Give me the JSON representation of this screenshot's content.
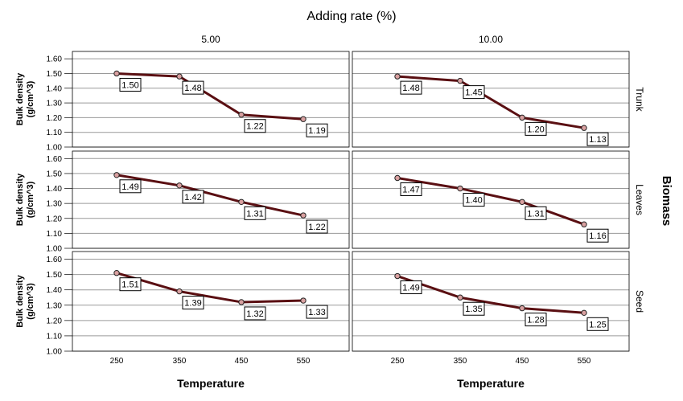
{
  "chart_data": {
    "type": "line",
    "title": "Adding rate (%)",
    "row_facet_label": "Biomass",
    "column_facets": [
      "5.00",
      "10.00"
    ],
    "row_facets": [
      "Trunk",
      "Leaves",
      "Seed"
    ],
    "xlabel": "Temperature",
    "ylabel_line1": "Bulk density",
    "ylabel_line2": "(g/cm^3)",
    "x": [
      "250",
      "350",
      "450",
      "550"
    ],
    "yticks": [
      "1.00",
      "1.10",
      "1.20",
      "1.30",
      "1.40",
      "1.50",
      "1.60"
    ],
    "ylim": [
      1.0,
      1.65
    ],
    "grid": true,
    "line_color": "#5a0f12",
    "marker_color": "#d9a0a0",
    "panels": [
      {
        "row": "Trunk",
        "column": "5.00",
        "values": [
          1.5,
          1.48,
          1.22,
          1.19
        ],
        "labels": [
          "1.50",
          "1.48",
          "1.22",
          "1.19"
        ]
      },
      {
        "row": "Trunk",
        "column": "10.00",
        "values": [
          1.48,
          1.45,
          1.2,
          1.13
        ],
        "labels": [
          "1.48",
          "1.45",
          "1.20",
          "1.13"
        ]
      },
      {
        "row": "Leaves",
        "column": "5.00",
        "values": [
          1.49,
          1.42,
          1.31,
          1.22
        ],
        "labels": [
          "1.49",
          "1.42",
          "1.31",
          "1.22"
        ]
      },
      {
        "row": "Leaves",
        "column": "10.00",
        "values": [
          1.47,
          1.4,
          1.31,
          1.16
        ],
        "labels": [
          "1.47",
          "1.40",
          "1.31",
          "1.16"
        ]
      },
      {
        "row": "Seed",
        "column": "5.00",
        "values": [
          1.51,
          1.39,
          1.32,
          1.33
        ],
        "labels": [
          "1.51",
          "1.39",
          "1.32",
          "1.33"
        ]
      },
      {
        "row": "Seed",
        "column": "10.00",
        "values": [
          1.49,
          1.35,
          1.28,
          1.25
        ],
        "labels": [
          "1.49",
          "1.35",
          "1.28",
          "1.25"
        ]
      }
    ]
  }
}
